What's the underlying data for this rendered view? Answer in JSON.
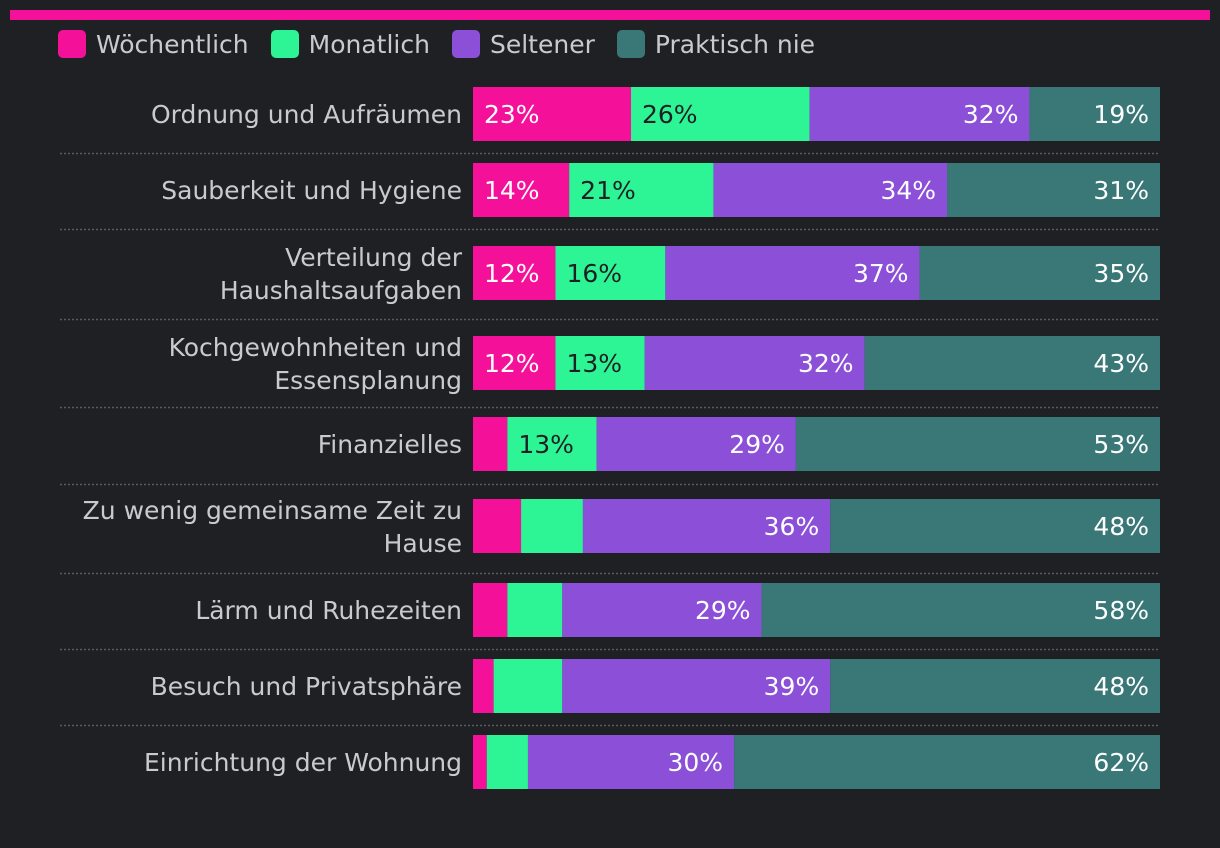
{
  "chart_data": {
    "type": "bar",
    "orientation": "horizontal",
    "stacked": true,
    "xlim": [
      0,
      100
    ],
    "legend_position": "top-left",
    "series": [
      {
        "name": "Wöchentlich",
        "color": "#f5109a",
        "text_color": "#ffffff",
        "values": [
          23,
          14,
          12,
          12,
          5,
          7,
          5,
          3,
          2
        ],
        "labels": [
          "23%",
          "14%",
          "12%",
          "12%",
          "",
          "",
          "",
          "",
          ""
        ]
      },
      {
        "name": "Monatlich",
        "color": "#2df595",
        "text_color": "#1f2023",
        "values": [
          26,
          21,
          16,
          13,
          13,
          9,
          8,
          10,
          6
        ],
        "labels": [
          "26%",
          "21%",
          "16%",
          "13%",
          "13%",
          "",
          "",
          "",
          ""
        ]
      },
      {
        "name": "Seltener",
        "color": "#8b4fd8",
        "text_color": "#ffffff",
        "values": [
          32,
          34,
          37,
          32,
          29,
          36,
          29,
          39,
          30
        ],
        "labels": [
          "32%",
          "34%",
          "37%",
          "32%",
          "29%",
          "36%",
          "29%",
          "39%",
          "30%"
        ]
      },
      {
        "name": "Praktisch nie",
        "color": "#3a7878",
        "text_color": "#ffffff",
        "values": [
          19,
          31,
          35,
          43,
          53,
          48,
          58,
          48,
          62
        ],
        "labels": [
          "19%",
          "31%",
          "35%",
          "43%",
          "53%",
          "48%",
          "58%",
          "48%",
          "62%"
        ]
      }
    ],
    "categories": [
      [
        "Ordnung und Aufräumen"
      ],
      [
        "Sauberkeit und Hygiene"
      ],
      [
        "Verteilung der",
        "Haushaltsaufgaben"
      ],
      [
        "Kochgewohnheiten und",
        "Essensplanung"
      ],
      [
        "Finanzielles"
      ],
      [
        "Zu wenig gemeinsame Zeit zu",
        "Hause"
      ],
      [
        "Lärm und Ruhezeiten"
      ],
      [
        "Besuch und Privatsphäre"
      ],
      [
        "Einrichtung der Wohnung"
      ]
    ]
  },
  "colors": {
    "accent": "#f5109a",
    "background": "#1f2023",
    "label_text": "#c9cacc",
    "divider": "#5a5b5e"
  }
}
